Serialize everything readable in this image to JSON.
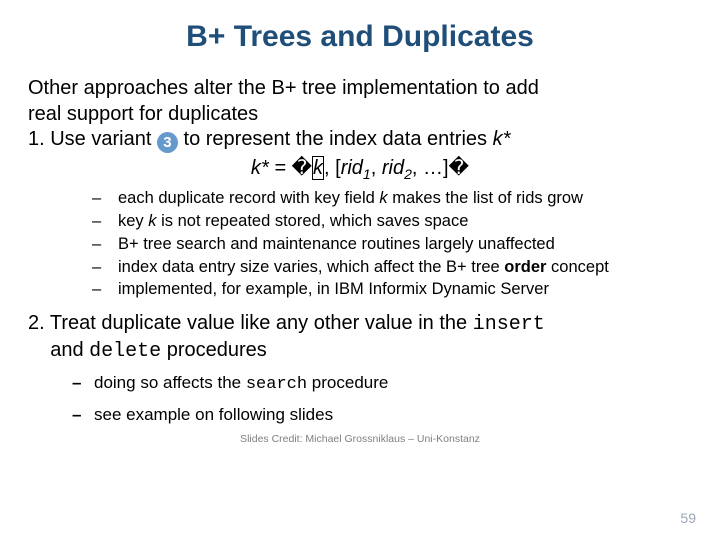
{
  "title": {
    "text": "B+ Trees and Duplicates",
    "color": "#1f4e79"
  },
  "intro": {
    "line1": "Other approaches alter the B+ tree implementation to add",
    "line2": "real support for duplicates",
    "item1_before": "1. Use variant ",
    "item1_after": " to represent the index data entries ",
    "kstar": "k*",
    "circled_number": "3",
    "circled_bg": "#6699cc",
    "circled_fg": "#ffffff"
  },
  "formula": {
    "lhs": "k* = ",
    "glyph": "�",
    "k": "k",
    "mid": ", [",
    "rid": "rid",
    "sub1": "1",
    "comma": ", ",
    "sub2": "2",
    "end": ", …]"
  },
  "bullets1": [
    {
      "pre": "each duplicate record with key field ",
      "em": "k ",
      "post": "makes the list of rids grow"
    },
    {
      "pre": "key ",
      "em": "k ",
      "post": "is not repeated stored, which saves space"
    },
    {
      "text": "B+ tree search and maintenance routines largely unaffected"
    },
    {
      "pre": "index data entry size varies, which affect the B+ tree ",
      "strong": "order ",
      "post2": "concept"
    },
    {
      "text": "implemented, for example, in IBM Informix Dynamic Server"
    }
  ],
  "section2": {
    "line1_pre": "2. Treat duplicate value like any other value in the ",
    "insert": "insert",
    "line2_pre": "and ",
    "delete": "delete",
    "line2_post": " procedures"
  },
  "bullets2": [
    {
      "pre": "doing so affects the ",
      "mono": "search",
      "post": " procedure"
    },
    {
      "text": "see example on following slides"
    }
  ],
  "credit": "Slides Credit: Michael Grossniklaus – Uni-Konstanz",
  "page_number": "59",
  "page_number_color": "#9aa7b7"
}
